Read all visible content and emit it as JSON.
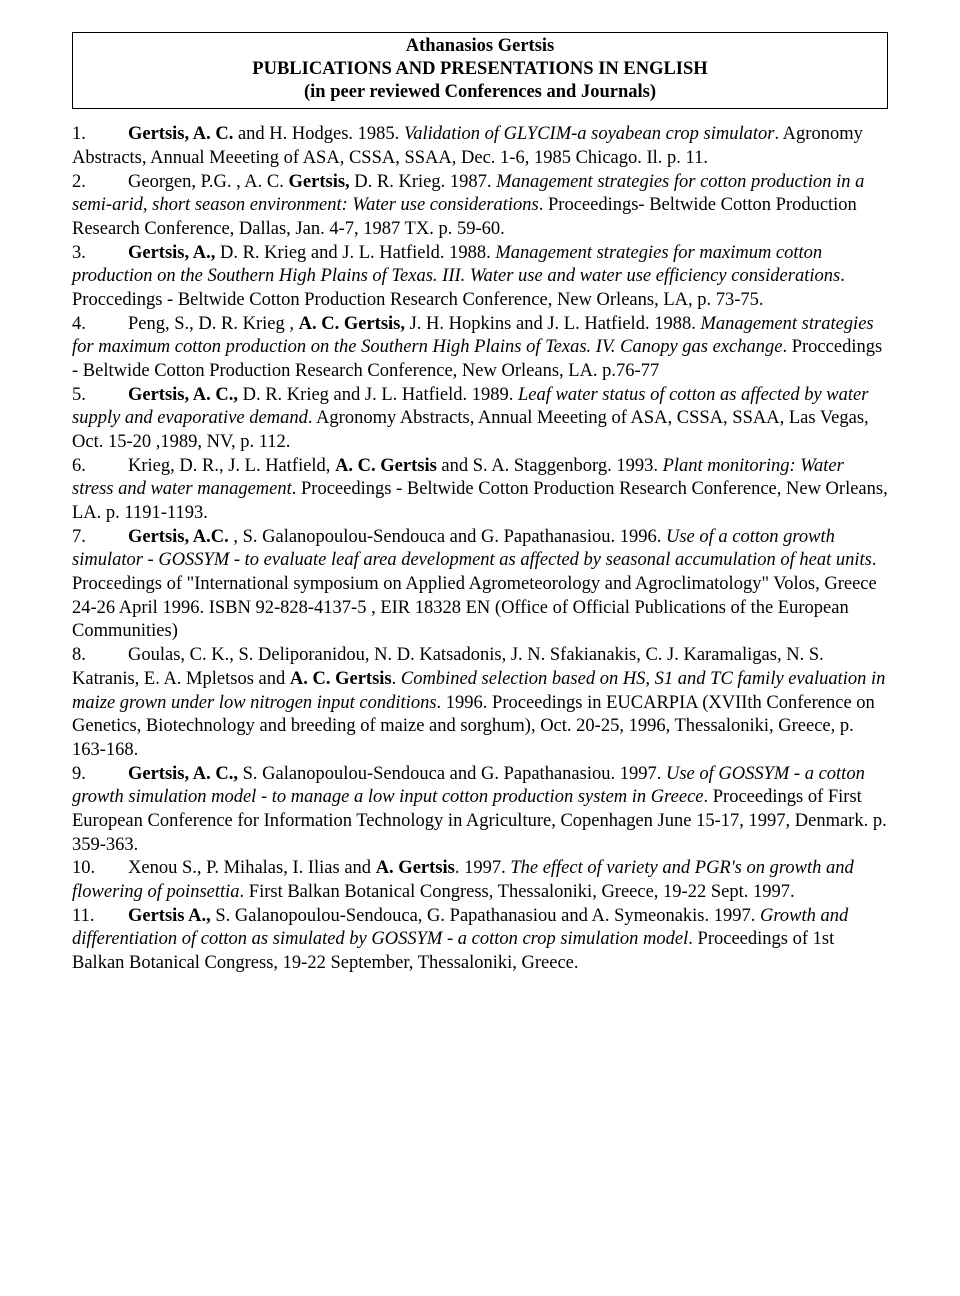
{
  "title": {
    "name": "Athanasios Gertsis",
    "line2": "PUBLICATIONS AND PRESENTATIONS IN ENGLISH",
    "line3": "(in peer reviewed Conferences and Journals)"
  },
  "entries": [
    {
      "num": "1.",
      "parts": [
        {
          "b": true,
          "t": "Gertsis, A. C."
        },
        {
          "t": " and H. Hodges. 1985. "
        },
        {
          "i": true,
          "t": "Validation of GLYCIM-a soyabean crop simulator"
        },
        {
          "t": ". Agronomy Abstracts, Annual Meeeting of ASA, CSSA, SSAA, Dec. 1-6, 1985 Chicago. Il.  p. 11."
        }
      ]
    },
    {
      "num": "2.",
      "parts": [
        {
          "t": "Georgen, P.G. , A. C. "
        },
        {
          "b": true,
          "t": "Gertsis,"
        },
        {
          "t": " D. R. Krieg. 1987. "
        },
        {
          "i": true,
          "t": "Management strategies for cotton production in a semi-arid, short season environment: Water use considerations"
        },
        {
          "t": ". Proceedings- Beltwide Cotton  Production Research Conference,  Dallas, Jan. 4-7, 1987 TX. p. 59-60."
        }
      ]
    },
    {
      "num": "3.",
      "parts": [
        {
          "b": true,
          "t": "Gertsis, A.,"
        },
        {
          "t": " D. R. Krieg and J. L. Hatfield. 1988. "
        },
        {
          "i": true,
          "t": "Management strategies for maximum cotton production on the Southern High Plains of Texas. III. Water use and water use efficiency considerations"
        },
        {
          "t": ". Proccedings - Beltwide Cotton  Production  Research Conference,  New Orleans, LA, p. 73-75."
        }
      ]
    },
    {
      "num": "4.",
      "parts": [
        {
          "t": "Peng, S., D. R. Krieg , "
        },
        {
          "b": true,
          "t": "A. C. Gertsis,"
        },
        {
          "t": " J. H. Hopkins and J. L. Hatfield. 1988. "
        },
        {
          "i": true,
          "t": "Management strategies for maximum cotton production on the Southern High Plains of Texas. IV.  Canopy gas exchange"
        },
        {
          "t": ". Proccedings - Beltwide Cotton  Production Research Conference,  New Orleans, LA. p.76-77"
        }
      ]
    },
    {
      "num": "5.",
      "parts": [
        {
          "b": true,
          "t": "Gertsis, A. C.,"
        },
        {
          "t": " D. R. Krieg and J. L. Hatfield. 1989.  "
        },
        {
          "i": true,
          "t": "Leaf water status of cotton as affected by water supply and evaporative demand"
        },
        {
          "t": ". Agronomy Abstracts, Annual Meeeting of ASA, CSSA, SSAA, Las Vegas, Oct. 15-20 ,1989,  NV,  p. 112."
        }
      ]
    },
    {
      "num": "6.",
      "parts": [
        {
          "t": "Krieg, D. R., J. L. Hatfield, "
        },
        {
          "b": true,
          "t": "A. C. Gertsis"
        },
        {
          "t": "  and S. A. Staggenborg. 1993. "
        },
        {
          "i": true,
          "t": "Plant monitoring: Water stress and water management"
        },
        {
          "t": ". Proceedings - Beltwide Cotton  Production Research Conference,  New Orleans, LA. p. 1191-1193."
        }
      ]
    },
    {
      "num": "7.",
      "parts": [
        {
          "b": true,
          "t": "Gertsis, A.C."
        },
        {
          "t": " , S. Galanopoulou-Sendouca and G. Papathanasiou. 1996. "
        },
        {
          "i": true,
          "t": "Use of a cotton growth simulator - GOSSYM - to evaluate leaf area development as affected by seasonal accumulation of heat units"
        },
        {
          "t": ". Procεedings of \"International symposium on Applied Agrometeorology and Agroclimatology\" Volos, Greece 24-26 April 1996. ISBN 92-828-4137-5 , EIR 18328 EN (Office of Official Publications of the European Communities)"
        }
      ]
    },
    {
      "num": "8.",
      "parts": [
        {
          "t": "Goulas, C. K., S. Deliporanidou, N. D. Katsadonis, J. N. Sfakianakis, C. J. Karamaligas, N. S. Katranis, E. A. Mpletsos and "
        },
        {
          "b": true,
          "t": "A. C. Gertsis"
        },
        {
          "t": ". "
        },
        {
          "i": true,
          "t": "Combined selection based on HS, S1 and TC family evaluation in maize grown under low nitrogen input conditions"
        },
        {
          "t": ". 1996. Proceedings in EUCARPIA (XVIIth Conference on Genetics, Biotechnology and breeding of maize and sorghum), Oct. 20-25, 1996, Thessaloniki, Greece, p. 163-168."
        }
      ]
    },
    {
      "num": "9.",
      "parts": [
        {
          "b": true,
          "t": "Gertsis, A. C.,"
        },
        {
          "t": " S. Galanopoulou-Sendouca and G. Papathanasiou. 1997. "
        },
        {
          "i": true,
          "t": "Use of GOSSYM - a cotton growth simulation model - to manage a low              input    cotton production system in Greece"
        },
        {
          "t": ". Proceedings of  First European Conference for Information Technology in Agriculture, Copenhagen June 15-17, 1997, Denmark. p. 359-363."
        }
      ]
    },
    {
      "num": "10.",
      "parts": [
        {
          "t": "Xenou  S., P. Mihalas, I. Ilias and "
        },
        {
          "b": true,
          "t": "A. Gertsis"
        },
        {
          "t": ". 1997. "
        },
        {
          "i": true,
          "t": "The effect of variety and PGR's on growth and flowering of poinsettia"
        },
        {
          "t": ". First Balkan Botanical Congress, Thessaloniki, Greece, 19-22 Sept. 1997."
        }
      ]
    },
    {
      "num": "11.",
      "parts": [
        {
          "b": true,
          "t": "Gertsis A.,"
        },
        {
          "t": " S. Galanopoulou-Sendouca, G. Papathanasiou and A. Symeonakis. 1997. "
        },
        {
          "i": true,
          "t": "Growth and differentiation of cotton as simulated by GOSSYM - a cotton crop simulation model"
        },
        {
          "t": ". Proceedings of 1st Balkan Botanical Congress,  19-22 September, Thessaloniki, Greece."
        }
      ]
    }
  ]
}
